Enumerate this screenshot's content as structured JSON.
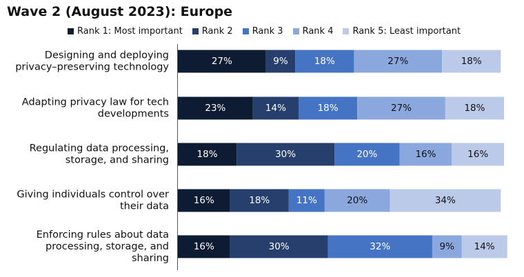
{
  "chart_data": {
    "type": "bar",
    "orientation": "horizontal",
    "stacked": true,
    "title": "Wave 2 (August 2023): Europe",
    "categories": [
      "Designing and deploying privacy–preserving technology",
      "Adapting privacy law for tech developments",
      "Regulating data processing, storage, and sharing",
      "Giving individuals control over their data",
      "Enforcing rules about data processing, storage, and sharing"
    ],
    "category_lines": [
      [
        "Designing and deploying",
        "privacy–preserving technology"
      ],
      [
        "Adapting privacy law for tech",
        "developments"
      ],
      [
        "Regulating data processing,",
        "storage, and sharing"
      ],
      [
        "Giving individuals control over",
        "their data"
      ],
      [
        "Enforcing rules about data",
        "processing, storage, and",
        "sharing"
      ]
    ],
    "series": [
      {
        "name": "Rank 1: Most important",
        "color": "#0e1c33",
        "label_color": "#ffffff",
        "values": [
          27,
          23,
          18,
          16,
          16
        ]
      },
      {
        "name": "Rank 2",
        "color": "#263f6c",
        "label_color": "#ffffff",
        "values": [
          9,
          14,
          30,
          18,
          30
        ]
      },
      {
        "name": "Rank 3",
        "color": "#4674c4",
        "label_color": "#ffffff",
        "values": [
          18,
          18,
          20,
          11,
          32
        ]
      },
      {
        "name": "Rank 4",
        "color": "#8aa8de",
        "label_color": "#111111",
        "values": [
          27,
          27,
          16,
          20,
          9
        ]
      },
      {
        "name": "Rank 5: Least important",
        "color": "#bccae9",
        "label_color": "#111111",
        "values": [
          18,
          18,
          16,
          34,
          14
        ]
      }
    ],
    "value_suffix": "%",
    "xlim": [
      0,
      100
    ],
    "legend_position": "top",
    "grid": false
  }
}
